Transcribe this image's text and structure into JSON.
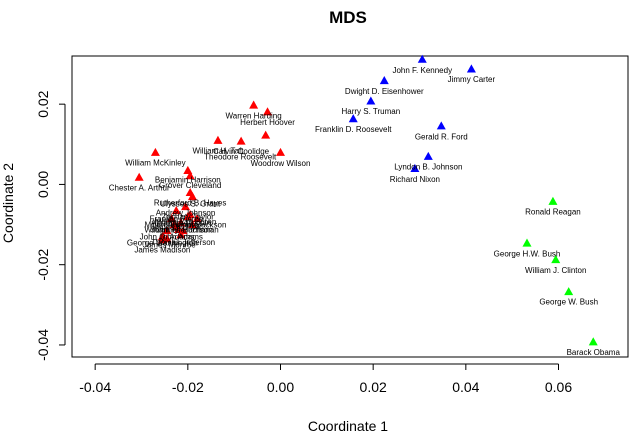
{
  "chart_data": {
    "type": "scatter",
    "title": "MDS",
    "xlabel": "Coordinate 1",
    "ylabel": "Coordinate 2",
    "xlim": [
      -0.045,
      0.075
    ],
    "ylim": [
      -0.043,
      0.032
    ],
    "xticks": [
      -0.04,
      -0.02,
      0.0,
      0.02,
      0.04,
      0.06
    ],
    "xtick_labels": [
      "-0.04",
      "-0.02",
      "0.00",
      "0.02",
      "0.04",
      "0.06"
    ],
    "yticks": [
      -0.04,
      -0.02,
      0.0,
      0.02
    ],
    "ytick_labels": [
      "-0.04",
      "-0.02",
      "0.00",
      "0.02"
    ],
    "grid": false,
    "marker": "triangle",
    "colors": {
      "red": "#ff0000",
      "blue": "#0000ff",
      "green": "#00ff00"
    },
    "points": [
      {
        "label": "John F. Kennedy",
        "x": 0.0306,
        "y": 0.0312,
        "color": "blue",
        "lx": 0.0306,
        "ly": 0.0285
      },
      {
        "label": "Jimmy Carter",
        "x": 0.0412,
        "y": 0.0288,
        "color": "blue",
        "lx": 0.0412,
        "ly": 0.0263
      },
      {
        "label": "Dwight D. Eisenhower",
        "x": 0.0224,
        "y": 0.0259,
        "color": "blue",
        "lx": 0.0224,
        "ly": 0.0233
      },
      {
        "label": "Harry S. Truman",
        "x": 0.0195,
        "y": 0.0208,
        "color": "blue",
        "lx": 0.0195,
        "ly": 0.0183
      },
      {
        "label": "Franklin D. Roosevelt",
        "x": 0.0157,
        "y": 0.0164,
        "color": "blue",
        "lx": 0.0157,
        "ly": 0.0138
      },
      {
        "label": "Gerald R. Ford",
        "x": 0.0347,
        "y": 0.0146,
        "color": "blue",
        "lx": 0.0347,
        "ly": 0.012
      },
      {
        "label": "Lyndon B. Johnson",
        "x": 0.0319,
        "y": 0.007,
        "color": "blue",
        "lx": 0.0319,
        "ly": 0.0045
      },
      {
        "label": "Richard Nixon",
        "x": 0.029,
        "y": 0.004,
        "color": "blue",
        "lx": 0.029,
        "ly": 0.0014
      },
      {
        "label": "Ronald Reagan",
        "x": 0.0588,
        "y": -0.0042,
        "color": "green",
        "lx": 0.0588,
        "ly": -0.0068
      },
      {
        "label": "George H.W. Bush",
        "x": 0.0532,
        "y": -0.0146,
        "color": "green",
        "lx": 0.0532,
        "ly": -0.0172
      },
      {
        "label": "William J. Clinton",
        "x": 0.0594,
        "y": -0.0187,
        "color": "green",
        "lx": 0.0594,
        "ly": -0.0213
      },
      {
        "label": "George W. Bush",
        "x": 0.0622,
        "y": -0.0267,
        "color": "green",
        "lx": 0.0622,
        "ly": -0.0292
      },
      {
        "label": "Barack Obama",
        "x": 0.0675,
        "y": -0.0392,
        "color": "green",
        "lx": 0.0675,
        "ly": -0.0418
      },
      {
        "label": "Warren Harding",
        "x": -0.0058,
        "y": 0.0198,
        "color": "red",
        "lx": -0.0058,
        "ly": 0.0172
      },
      {
        "label": "Herbert Hoover",
        "x": -0.0028,
        "y": 0.0181,
        "color": "red",
        "lx": -0.0028,
        "ly": 0.0155
      },
      {
        "label": "Calvin Coolidge",
        "x": -0.0085,
        "y": 0.0108,
        "color": "red",
        "lx": -0.0085,
        "ly": 0.0083
      },
      {
        "label": "William H. Taft",
        "x": -0.0135,
        "y": 0.011,
        "color": "red",
        "lx": -0.0135,
        "ly": 0.0085
      },
      {
        "label": "Theodore Roosevelt",
        "x": -0.0032,
        "y": 0.0123,
        "color": "red",
        "lx": -0.0087,
        "ly": 0.007
      },
      {
        "label": "Woodrow Wilson",
        "x": 0.0,
        "y": 0.008,
        "color": "red",
        "lx": 0.0,
        "ly": 0.0054
      },
      {
        "label": "William McKinley",
        "x": -0.027,
        "y": 0.008,
        "color": "red",
        "lx": -0.027,
        "ly": 0.0055
      },
      {
        "label": "Benjamin Harrison",
        "x": -0.02,
        "y": 0.0035,
        "color": "red",
        "lx": -0.02,
        "ly": 0.0012
      },
      {
        "label": "Grover Cleveland",
        "x": -0.0195,
        "y": 0.0022,
        "color": "red",
        "lx": -0.0195,
        "ly": -0.0002
      },
      {
        "label": "Chester A. Arthur",
        "x": -0.0305,
        "y": 0.0018,
        "color": "red",
        "lx": -0.0305,
        "ly": -0.0008
      },
      {
        "label": "Rutherford B. Hayes",
        "x": -0.0195,
        "y": -0.002,
        "color": "red",
        "lx": -0.0195,
        "ly": -0.0045
      },
      {
        "label": "Ulysses S. Grant",
        "x": -0.019,
        "y": -0.003,
        "color": "red",
        "lx": -0.0195,
        "ly": -0.0048
      },
      {
        "label": "Andrew Johnson",
        "x": -0.0205,
        "y": -0.0055,
        "color": "red",
        "lx": -0.0205,
        "ly": -0.007
      },
      {
        "label": "Franklin Pierce",
        "x": -0.0225,
        "y": -0.0065,
        "color": "red",
        "lx": -0.0225,
        "ly": -0.0085
      },
      {
        "label": "Martin Van Buren",
        "x": -0.0195,
        "y": -0.0075,
        "color": "red",
        "lx": -0.0205,
        "ly": -0.0092
      },
      {
        "label": "Andrew Jackson",
        "x": -0.018,
        "y": -0.0085,
        "color": "red",
        "lx": -0.018,
        "ly": -0.01
      },
      {
        "label": "Millard Fillmore",
        "x": -0.0235,
        "y": -0.0085,
        "color": "red",
        "lx": -0.0235,
        "ly": -0.01
      },
      {
        "label": "John Tyler",
        "x": -0.023,
        "y": -0.01,
        "color": "red",
        "lx": -0.024,
        "ly": -0.0112
      },
      {
        "label": "John Q. Adams",
        "x": -0.0245,
        "y": -0.0115,
        "color": "red",
        "lx": -0.0245,
        "ly": -0.013
      },
      {
        "label": "John Adams",
        "x": -0.021,
        "y": -0.0115,
        "color": "red",
        "lx": -0.0215,
        "ly": -0.013
      },
      {
        "label": "James Buchanan",
        "x": -0.019,
        "y": -0.01,
        "color": "red",
        "lx": -0.02,
        "ly": -0.0112
      },
      {
        "label": "Thomas Jefferson",
        "x": -0.0215,
        "y": -0.0125,
        "color": "red",
        "lx": -0.021,
        "ly": -0.0143
      },
      {
        "label": "George Washington",
        "x": -0.0255,
        "y": -0.013,
        "color": "red",
        "lx": -0.0255,
        "ly": -0.0145
      },
      {
        "label": "James Monroe",
        "x": -0.0245,
        "y": -0.0135,
        "color": "red",
        "lx": -0.024,
        "ly": -0.015
      },
      {
        "label": "James Madison",
        "x": -0.0255,
        "y": -0.0138,
        "color": "red",
        "lx": -0.0255,
        "ly": -0.0162
      },
      {
        "label": "Zachary Taylor",
        "x": -0.02,
        "y": -0.008,
        "color": "red",
        "lx": -0.02,
        "ly": -0.008
      },
      {
        "label": "Abraham Lincoln",
        "x": -0.0215,
        "y": -0.0095,
        "color": "red",
        "lx": -0.0215,
        "ly": -0.0095
      },
      {
        "label": "James K. Polk",
        "x": -0.0225,
        "y": -0.0105,
        "color": "red",
        "lx": -0.0225,
        "ly": -0.0105
      },
      {
        "label": "William H. Harrison",
        "x": -0.022,
        "y": -0.0112,
        "color": "red",
        "lx": -0.022,
        "ly": -0.0112
      }
    ]
  }
}
